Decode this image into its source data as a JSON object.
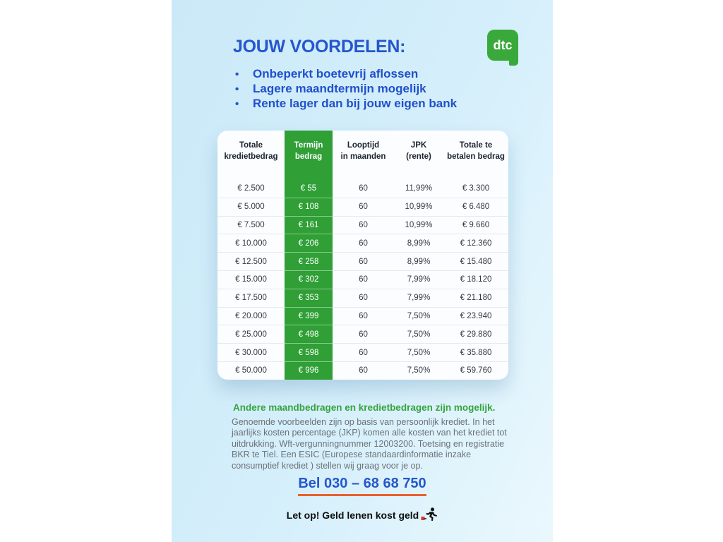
{
  "page": {
    "title": "JOUW VOORDELEN:",
    "bullets": [
      "Onbeperkt boetevrij aflossen",
      "Lagere maandtermijn mogelijk",
      "Rente lager dan bij jouw eigen bank"
    ],
    "logo_text": "dtc"
  },
  "table": {
    "headers": [
      {
        "line1": "Totale",
        "line2": "kredietbedrag"
      },
      {
        "line1": "Termijn",
        "line2": "bedrag"
      },
      {
        "line1": "Looptijd",
        "line2": "in maanden"
      },
      {
        "line1": "JPK",
        "line2": "(rente)"
      },
      {
        "line1": "Totale te",
        "line2": "betalen bedrag"
      }
    ],
    "rows": [
      {
        "credit": "€ 2.500",
        "term": "€ 55",
        "months": "60",
        "jkp": "11,99%",
        "total": "€ 3.300"
      },
      {
        "credit": "€ 5.000",
        "term": "€ 108",
        "months": "60",
        "jkp": "10,99%",
        "total": "€ 6.480"
      },
      {
        "credit": "€ 7.500",
        "term": "€ 161",
        "months": "60",
        "jkp": "10,99%",
        "total": "€ 9.660"
      },
      {
        "credit": "€ 10.000",
        "term": "€ 206",
        "months": "60",
        "jkp": "8,99%",
        "total": "€ 12.360"
      },
      {
        "credit": "€ 12.500",
        "term": "€ 258",
        "months": "60",
        "jkp": "8,99%",
        "total": "€ 15.480"
      },
      {
        "credit": "€ 15.000",
        "term": "€ 302",
        "months": "60",
        "jkp": "7,99%",
        "total": "€ 18.120"
      },
      {
        "credit": "€ 17.500",
        "term": "€ 353",
        "months": "60",
        "jkp": "7,99%",
        "total": "€ 21.180"
      },
      {
        "credit": "€ 20.000",
        "term": "€ 399",
        "months": "60",
        "jkp": "7,50%",
        "total": "€ 23.940"
      },
      {
        "credit": "€ 25.000",
        "term": "€ 498",
        "months": "60",
        "jkp": "7,50%",
        "total": "€ 29.880"
      },
      {
        "credit": "€ 30.000",
        "term": "€ 598",
        "months": "60",
        "jkp": "7,50%",
        "total": "€ 35.880"
      },
      {
        "credit": "€ 50.000",
        "term": "€ 996",
        "months": "60",
        "jkp": "7,50%",
        "total": "€ 59.760"
      }
    ]
  },
  "footer": {
    "highlight": "Andere maandbedragen en kredietbedragen zijn mogelijk.",
    "disclaimer": "Genoemde voorbeelden zijn op basis van persoonlijk krediet. In het jaarlijks kosten percentage (JKP) komen alle kosten van het krediet tot uitdrukking. Wft-vergunningnummer 12003200. Toetsing en registratie BKR te Tiel. Een ESIC (Europese standaardinformatie inzake consumptief krediet ) stellen wij graag voor je op.",
    "phone": "Bel 030 – 68 68 750",
    "warning": "Let op! Geld lenen kost geld",
    "warning_icon": "money-burden-runner-icon"
  },
  "colors": {
    "blue": "#2456cd",
    "bullet_blue": "#2050cb",
    "logo_green": "#3aa93c",
    "stripe_green": "#2f9f36",
    "green_text": "#35a43f",
    "orange": "#e8602f",
    "panel_top": "#cbe9f8",
    "panel_mid": "#d5effb",
    "panel_bottom": "#eaf8fd",
    "card_bg": "#fbfdfe"
  }
}
